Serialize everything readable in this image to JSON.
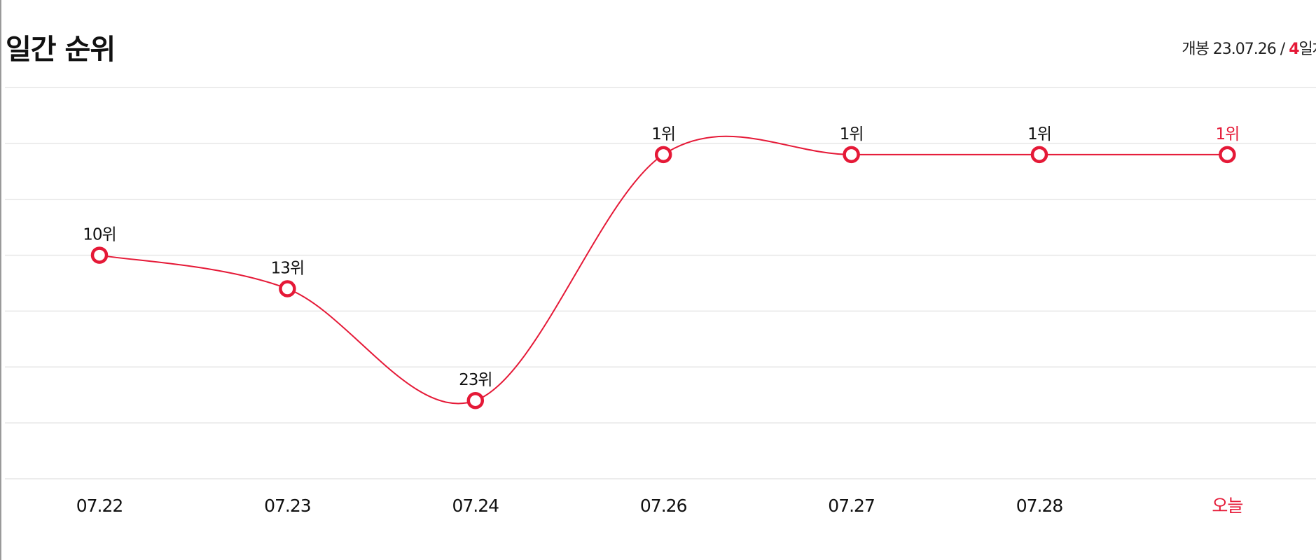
{
  "header": {
    "title": "일간 순위",
    "release_label": "개봉 23.07.26",
    "separator": "/",
    "day_number": "4",
    "day_suffix": "일차"
  },
  "chart_data": {
    "type": "line",
    "categories": [
      "07.22",
      "07.23",
      "07.24",
      "07.26",
      "07.27",
      "07.28",
      "오늘"
    ],
    "values": [
      10,
      13,
      23,
      1,
      1,
      1,
      1
    ],
    "value_labels": [
      "10위",
      "13위",
      "23위",
      "1위",
      "1위",
      "1위",
      "1위"
    ],
    "color": "#e51937",
    "highlight_last": true,
    "ylim": [
      -5,
      30
    ],
    "inverted": true,
    "yticks": [
      -5,
      0,
      5,
      10,
      15,
      20,
      25,
      30
    ],
    "grid": true,
    "smooth": true
  }
}
